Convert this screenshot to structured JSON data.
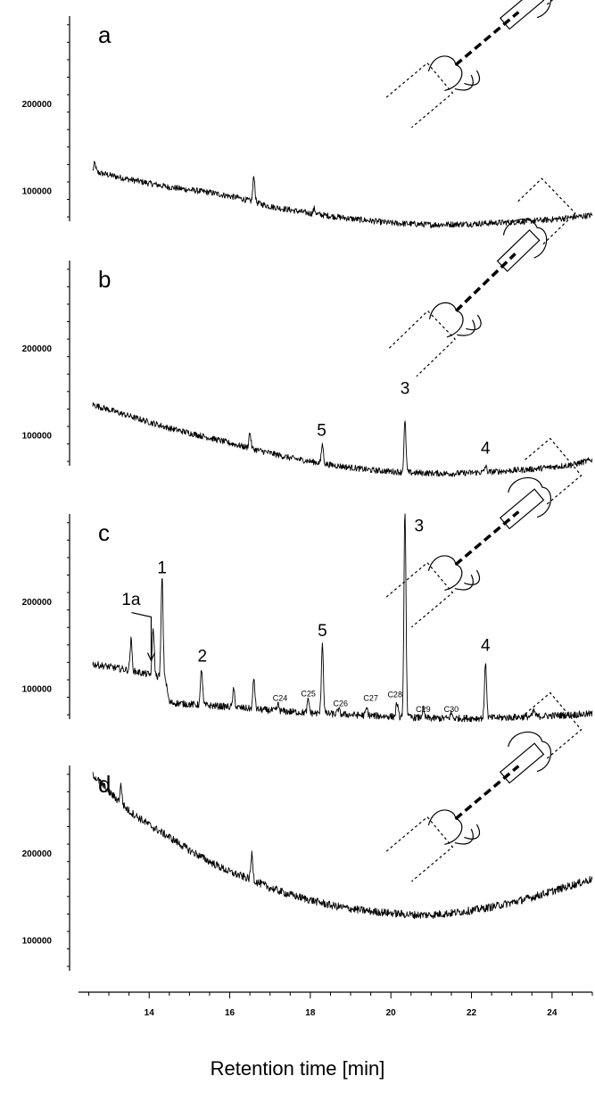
{
  "chart_data": {
    "type": "line",
    "xlabel": "Retention time [min]",
    "xlim": [
      12.3,
      25.0
    ],
    "x_ticks": [
      14,
      16,
      18,
      20,
      22,
      24
    ],
    "panels": [
      {
        "letter": "a",
        "ylim": [
          65000,
          300000
        ],
        "y_ticks": [
          100000,
          200000
        ],
        "baseline": [
          [
            12.6,
            122000
          ],
          [
            13.5,
            113000
          ],
          [
            14.5,
            104000
          ],
          [
            15.5,
            98000
          ],
          [
            16.2,
            92000
          ],
          [
            17.0,
            82000
          ],
          [
            18.0,
            74000
          ],
          [
            19.0,
            68000
          ],
          [
            20.0,
            63000
          ],
          [
            21.0,
            61000
          ],
          [
            22.0,
            62000
          ],
          [
            23.0,
            64000
          ],
          [
            24.0,
            67000
          ],
          [
            25.0,
            72000
          ]
        ],
        "peaks": [
          {
            "x": 12.65,
            "height": 10000
          },
          {
            "x": 16.6,
            "height": 30000
          },
          {
            "x": 18.1,
            "height": 6000
          }
        ],
        "noise": 3500,
        "peak_labels": [],
        "alkane_labels": []
      },
      {
        "letter": "b",
        "ylim": [
          65000,
          300000
        ],
        "y_ticks": [
          100000,
          200000
        ],
        "baseline": [
          [
            12.6,
            135000
          ],
          [
            13.5,
            122000
          ],
          [
            14.5,
            108000
          ],
          [
            15.5,
            97000
          ],
          [
            16.5,
            85000
          ],
          [
            17.5,
            74000
          ],
          [
            18.5,
            66000
          ],
          [
            19.5,
            60000
          ],
          [
            20.5,
            57000
          ],
          [
            21.5,
            56000
          ],
          [
            22.5,
            58000
          ],
          [
            23.5,
            61000
          ],
          [
            24.5,
            66000
          ],
          [
            25.0,
            72000
          ]
        ],
        "peaks": [
          {
            "x": 16.5,
            "height": 18000
          },
          {
            "x": 18.3,
            "height": 22000
          },
          {
            "x": 20.35,
            "height": 58000
          },
          {
            "x": 22.35,
            "height": 7000
          }
        ],
        "noise": 3500,
        "peak_labels": [
          {
            "text": "5",
            "x": 18.28,
            "y": 99000
          },
          {
            "text": "3",
            "x": 20.35,
            "y": 147000
          },
          {
            "text": "4",
            "x": 22.35,
            "y": 79000
          }
        ],
        "alkane_labels": []
      },
      {
        "letter": "c",
        "ylim": [
          65000,
          300000
        ],
        "y_ticks": [
          100000,
          200000
        ],
        "baseline": [
          [
            12.6,
            128000
          ],
          [
            13.0,
            125000
          ],
          [
            13.5,
            121000
          ],
          [
            14.0,
            116000
          ],
          [
            14.4,
            112000
          ],
          [
            14.5,
            84000
          ],
          [
            15.0,
            82000
          ],
          [
            16.0,
            79000
          ],
          [
            17.0,
            75000
          ],
          [
            18.0,
            72000
          ],
          [
            19.0,
            70000
          ],
          [
            20.0,
            68000
          ],
          [
            21.0,
            66000
          ],
          [
            22.0,
            66000
          ],
          [
            23.0,
            67000
          ],
          [
            24.0,
            69000
          ],
          [
            25.0,
            71000
          ]
        ],
        "peaks": [
          {
            "x": 13.55,
            "height": 35000
          },
          {
            "x": 14.1,
            "height": 55000
          },
          {
            "x": 14.32,
            "height": 115000
          },
          {
            "x": 15.3,
            "height": 42000
          },
          {
            "x": 16.1,
            "height": 20000
          },
          {
            "x": 16.6,
            "height": 35000
          },
          {
            "x": 17.2,
            "height": 7000
          },
          {
            "x": 17.95,
            "height": 15000
          },
          {
            "x": 18.3,
            "height": 82000
          },
          {
            "x": 18.7,
            "height": 6000
          },
          {
            "x": 19.4,
            "height": 8000
          },
          {
            "x": 20.15,
            "height": 16000
          },
          {
            "x": 20.35,
            "height": 240000
          },
          {
            "x": 20.8,
            "height": 10000
          },
          {
            "x": 21.5,
            "height": 6000
          },
          {
            "x": 22.35,
            "height": 65000
          },
          {
            "x": 23.55,
            "height": 7000
          }
        ],
        "noise": 4000,
        "peak_labels": [
          {
            "text": "1",
            "x": 14.32,
            "y": 232000
          },
          {
            "text": "1a",
            "x": 13.55,
            "y": 196000
          },
          {
            "text": "2",
            "x": 15.32,
            "y": 131000
          },
          {
            "text": "5",
            "x": 18.3,
            "y": 160000
          },
          {
            "text": "3",
            "x": 20.7,
            "y": 280000
          },
          {
            "text": "4",
            "x": 22.35,
            "y": 143000
          }
        ],
        "alkane_labels": [
          {
            "text": "C24",
            "x": 17.25,
            "y": 86000
          },
          {
            "text": "C25",
            "x": 17.95,
            "y": 91000
          },
          {
            "text": "C26",
            "x": 18.75,
            "y": 80000
          },
          {
            "text": "C27",
            "x": 19.5,
            "y": 86000
          },
          {
            "text": "C28",
            "x": 20.1,
            "y": 90000
          },
          {
            "text": "C29",
            "x": 20.8,
            "y": 73000
          },
          {
            "text": "C30",
            "x": 21.5,
            "y": 73000
          }
        ]
      },
      {
        "letter": "d",
        "ylim": [
          65000,
          300000
        ],
        "y_ticks": [
          100000,
          200000
        ],
        "baseline": [
          [
            12.6,
            290000
          ],
          [
            13.0,
            270000
          ],
          [
            13.5,
            248000
          ],
          [
            14.0,
            232000
          ],
          [
            14.5,
            218000
          ],
          [
            15.0,
            203000
          ],
          [
            15.5,
            190000
          ],
          [
            16.0,
            178000
          ],
          [
            16.5,
            170000
          ],
          [
            17.0,
            160000
          ],
          [
            17.5,
            152000
          ],
          [
            18.0,
            146000
          ],
          [
            18.5,
            140000
          ],
          [
            19.0,
            136000
          ],
          [
            19.5,
            133000
          ],
          [
            20.0,
            131000
          ],
          [
            20.5,
            129000
          ],
          [
            21.0,
            129000
          ],
          [
            21.5,
            131000
          ],
          [
            22.0,
            134000
          ],
          [
            22.5,
            138000
          ],
          [
            23.0,
            143000
          ],
          [
            23.5,
            149000
          ],
          [
            24.0,
            156000
          ],
          [
            24.5,
            163000
          ],
          [
            25.0,
            170000
          ]
        ],
        "peaks": [
          {
            "x": 13.3,
            "height": 20000
          },
          {
            "x": 16.55,
            "height": 30000
          }
        ],
        "noise": 4500,
        "peak_labels": [],
        "alkane_labels": []
      }
    ]
  },
  "colors": {
    "ink": "#000000",
    "background": "#ffffff"
  },
  "icons": [
    "syringe-extraction-icon",
    "syringe-extraction-icon",
    "syringe-extraction-icon",
    "syringe-extraction-icon"
  ]
}
